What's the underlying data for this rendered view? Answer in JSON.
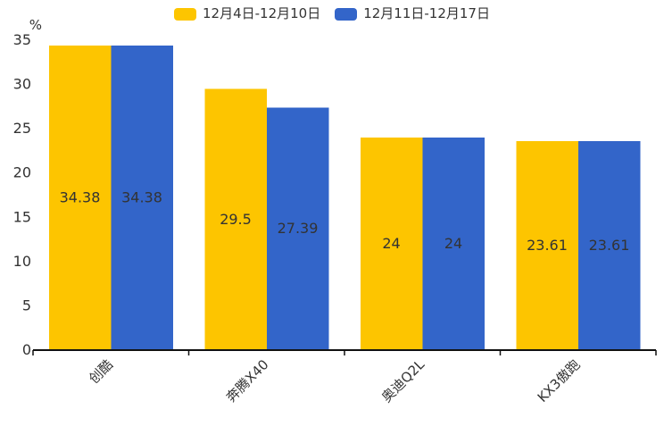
{
  "page": {
    "background": "#ffffff"
  },
  "legend": {
    "items": [
      {
        "label": "12月4日-12月10日",
        "color": "#fdc500"
      },
      {
        "label": "12月11日-12月17日",
        "color": "#3365c9"
      }
    ]
  },
  "chart_data": {
    "type": "bar",
    "title": "",
    "categories": [
      "创酷",
      "奔腾X40",
      "奥迪Q2L",
      "KX3傲跑"
    ],
    "series": [
      {
        "name": "12月4日-12月10日",
        "color": "#fdc500",
        "values": [
          34.38,
          29.5,
          24,
          23.61
        ]
      },
      {
        "name": "12月11日-12月17日",
        "color": "#3365c9",
        "values": [
          34.38,
          27.39,
          24,
          23.61
        ]
      }
    ],
    "value_labels": [
      [
        "34.38",
        "29.5",
        "24",
        "23.61"
      ],
      [
        "34.38",
        "27.39",
        "24",
        "23.61"
      ]
    ],
    "xlabel": "",
    "ylabel": "%",
    "yticks": [
      0,
      5,
      10,
      15,
      20,
      25,
      30,
      35
    ],
    "ylim": [
      0,
      35
    ],
    "grid": false,
    "legend_position": "top-center",
    "value_label_color": "#333333",
    "tick_label_color": "#333333",
    "axis_color": "#111111"
  }
}
